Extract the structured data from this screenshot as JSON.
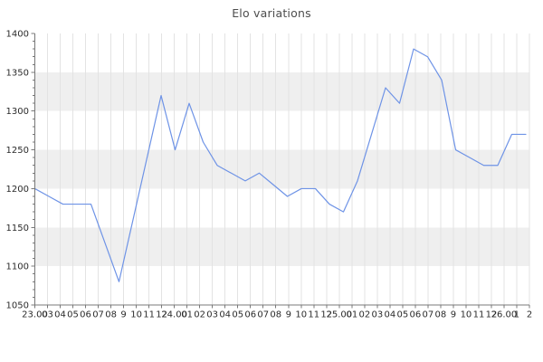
{
  "chart_data": {
    "type": "line",
    "title": "Elo variations",
    "xlabel": "",
    "ylabel": "",
    "legend": "none",
    "ylim": [
      1050,
      1400
    ],
    "y_ticks": [
      1050,
      1100,
      1150,
      1200,
      1250,
      1300,
      1350,
      1400
    ],
    "y_minor_tick_step": 10,
    "shaded_bands": [
      [
        1100,
        1150
      ],
      [
        1200,
        1250
      ],
      [
        1300,
        1350
      ]
    ],
    "grid": {
      "vertical": true,
      "horizontal_bands": true
    },
    "x_tick_labels": [
      "23.00",
      "03",
      "04",
      "05",
      "06",
      "07",
      "08",
      "9",
      "10",
      "11",
      "12",
      "24.00",
      "01",
      "02",
      "03",
      "04",
      "05",
      "06",
      "07",
      "08",
      "9",
      "10",
      "11",
      "12",
      "25.00",
      "01",
      "02",
      "03",
      "04",
      "05",
      "06",
      "07",
      "08",
      "9",
      "10",
      "11",
      "12",
      "26.00",
      "1",
      "2"
    ],
    "series": [
      {
        "name": "elo",
        "values": [
          1200,
          1190,
          1180,
          1180,
          1180,
          1130,
          1080,
          1160,
          1240,
          1320,
          1250,
          1310,
          1260,
          1230,
          1220,
          1210,
          1220,
          1205,
          1190,
          1200,
          1200,
          1180,
          1170,
          1210,
          1270,
          1330,
          1310,
          1380,
          1370,
          1340,
          1250,
          1240,
          1230,
          1230,
          1270,
          1270
        ]
      }
    ]
  },
  "colors": {
    "line": "#6e93e6",
    "band": "#efefef",
    "grid": "#e3e3e3",
    "axis": "#787878",
    "tick_label": "#2b2b2b",
    "title": "#4d4d4d",
    "background": "#ffffff"
  }
}
